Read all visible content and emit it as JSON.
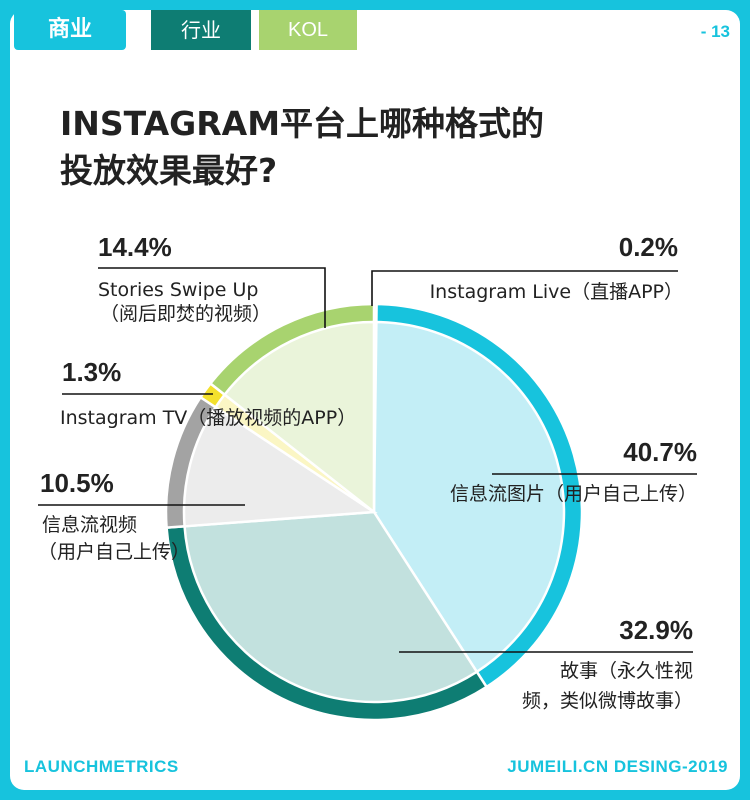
{
  "header": {
    "category_tag": "商业",
    "tabs": [
      "行业",
      "KOL"
    ],
    "page_number": "- 13"
  },
  "title_lines": [
    "INSTAGRAM平台上哪种格式的",
    "投放效果最好?"
  ],
  "chart_data": {
    "type": "pie",
    "slices": [
      {
        "label": "Instagram Live（直播APP）",
        "value": 0.2,
        "value_text": "0.2%",
        "color": "#17c3dd",
        "fill": "#ffffff"
      },
      {
        "label": "信息流图片（用户自己上传）",
        "value": 40.7,
        "value_text": "40.7%",
        "color": "#17c3dd",
        "fill": "#c3eef6"
      },
      {
        "label": "故事（永久性视频，类似微博故事）",
        "value": 32.9,
        "value_text": "32.9%",
        "color": "#0e7d73",
        "fill": "#c2e1de"
      },
      {
        "label": "信息流视频（用户自己上传）",
        "value": 10.5,
        "value_text": "10.5%",
        "color": "#a3a3a3",
        "fill": "#ececec"
      },
      {
        "label": "Instagram TV（播放视频的APP）",
        "value": 1.3,
        "value_text": "1.3%",
        "color": "#f3e02d",
        "fill": "#fbf6c4"
      },
      {
        "label": "Stories Swipe Up（阅后即焚的视频）",
        "value": 14.4,
        "value_text": "14.4%",
        "color": "#a8d36f",
        "fill": "#eaf4da"
      }
    ],
    "label_lines": [
      [
        "Instagram Live（直播APP）"
      ],
      [
        "信息流图片（用户自己上传）"
      ],
      [
        "故事（永久性视",
        "频，类似微博故事）"
      ],
      [
        "信息流视频",
        "（用户自己上传）"
      ],
      [
        "Instagram TV（播放视频的APP）"
      ],
      [
        "Stories Swipe Up",
        "（阅后即焚的视频）"
      ]
    ]
  },
  "footer": {
    "left": "LAUNCHMETRICS",
    "right": "JUMEILI.CN DESING-2019"
  }
}
